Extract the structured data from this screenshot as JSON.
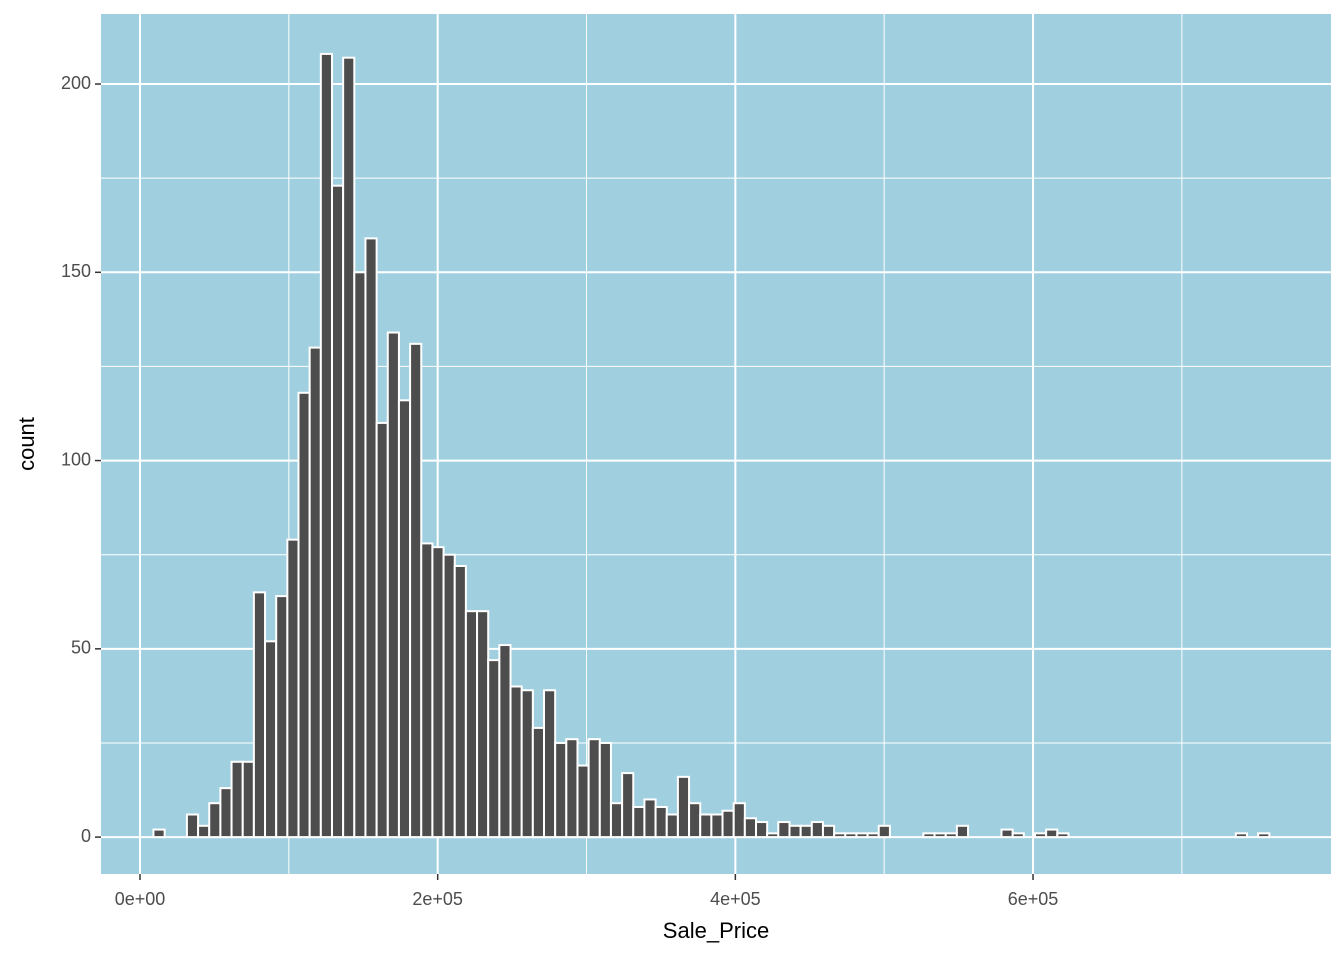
{
  "chart_data": {
    "type": "histogram",
    "x_label": "Sale_Price",
    "y_label": "count",
    "bins": [
      9040,
      16537,
      24034,
      31531,
      39028,
      46525,
      54022,
      61520,
      69017,
      76514,
      84011,
      91508,
      99005,
      106502,
      113999,
      121496,
      128993,
      136490,
      143987,
      151485,
      158982,
      166479,
      173976,
      181473,
      188970,
      196467,
      203964,
      211461,
      218958,
      226455,
      233952,
      241449,
      248947,
      256444,
      263941,
      271438,
      278935,
      286432,
      293929,
      301426,
      308923,
      316420,
      323917,
      331414,
      338912,
      346409,
      353906,
      361403,
      368900,
      376397,
      383894,
      391391,
      398888,
      406385,
      413882,
      421379,
      428876,
      436374,
      443871,
      451368,
      458865,
      466362,
      473859,
      481356,
      488853,
      496350,
      503847,
      511344,
      518841,
      526339,
      533836,
      541333,
      548830,
      556327,
      563824,
      571321,
      578818,
      586315,
      593812,
      601309,
      608806,
      616303,
      623801,
      631298,
      638795,
      646292,
      653789,
      661286,
      668783,
      676280,
      683777,
      691274,
      698771,
      706268,
      713766,
      721263,
      728760,
      736257,
      743754,
      751251,
      758748
    ],
    "counts": [
      2,
      0,
      0,
      6,
      3,
      9,
      13,
      20,
      20,
      65,
      52,
      64,
      79,
      118,
      130,
      208,
      173,
      207,
      150,
      159,
      110,
      134,
      116,
      131,
      78,
      77,
      75,
      72,
      60,
      60,
      47,
      51,
      40,
      39,
      29,
      39,
      25,
      26,
      19,
      26,
      25,
      9,
      17,
      8,
      10,
      8,
      6,
      16,
      9,
      6,
      6,
      7,
      9,
      5,
      4,
      1,
      4,
      3,
      3,
      4,
      3,
      1,
      1,
      1,
      1,
      3,
      0,
      0,
      0,
      1,
      1,
      1,
      3,
      0,
      0,
      0,
      2,
      1,
      0,
      1,
      2,
      1,
      0,
      0,
      0,
      0,
      0,
      0,
      0,
      0,
      0,
      0,
      0,
      0,
      0,
      0,
      0,
      1,
      0,
      1
    ],
    "color": "#4d4d4d",
    "edge_color": "#ffffff",
    "panel_color": "#a0d0e0",
    "grid": true,
    "xlim": [
      -26200,
      800200
    ],
    "ylim": [
      -9.8,
      218.6
    ],
    "xticks": [
      {
        "value": 0,
        "label": "0e+00"
      },
      {
        "value": 200000,
        "label": "2e+05"
      },
      {
        "value": 400000,
        "label": "4e+05"
      },
      {
        "value": 600000,
        "label": "6e+05"
      }
    ],
    "xminor": [
      100000,
      300000,
      500000,
      700000
    ],
    "yticks": [
      0,
      50,
      100,
      150,
      200
    ],
    "yminor": [
      25,
      75,
      125,
      175
    ]
  }
}
